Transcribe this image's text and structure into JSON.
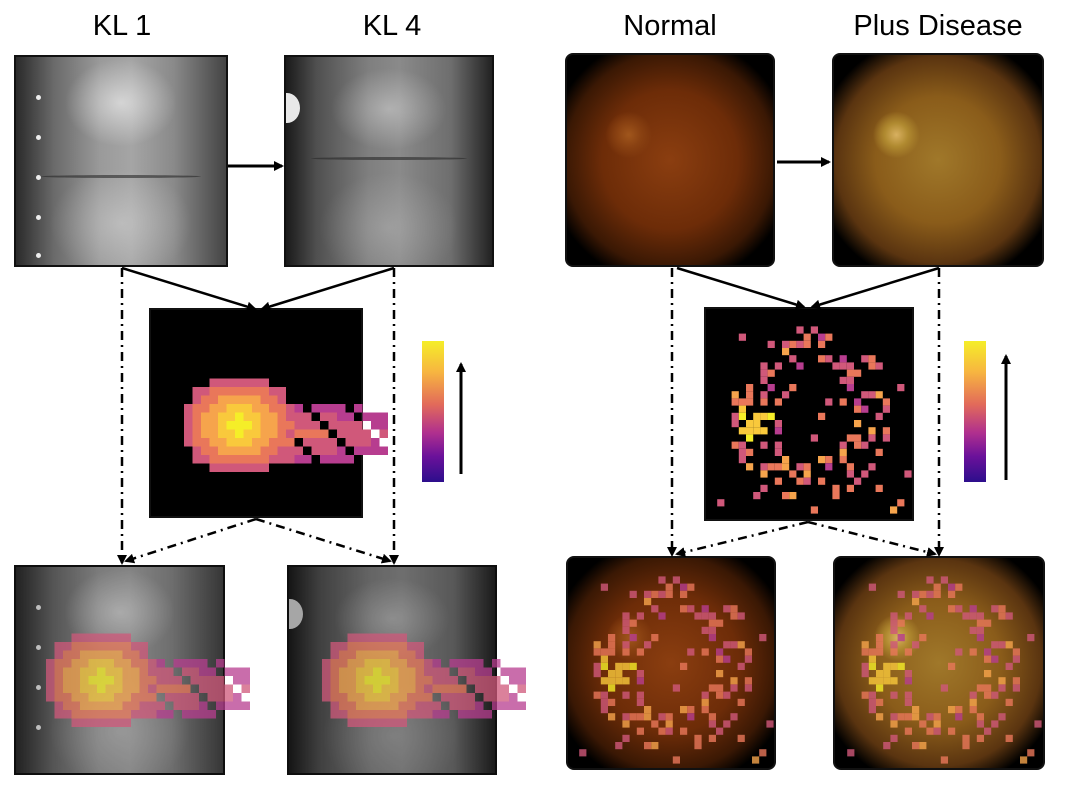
{
  "titles": {
    "kl1": "KL 1",
    "kl4": "KL 4",
    "normal": "Normal",
    "plus": "Plus Disease"
  },
  "colors": {
    "cmap_top": "#f5ee28",
    "cmap_bottom": "#2c0e8c",
    "arrow": "#000000"
  },
  "icons": [
    "right-arrow-icon",
    "down-arrow-icon",
    "up-arrow-icon"
  ]
}
